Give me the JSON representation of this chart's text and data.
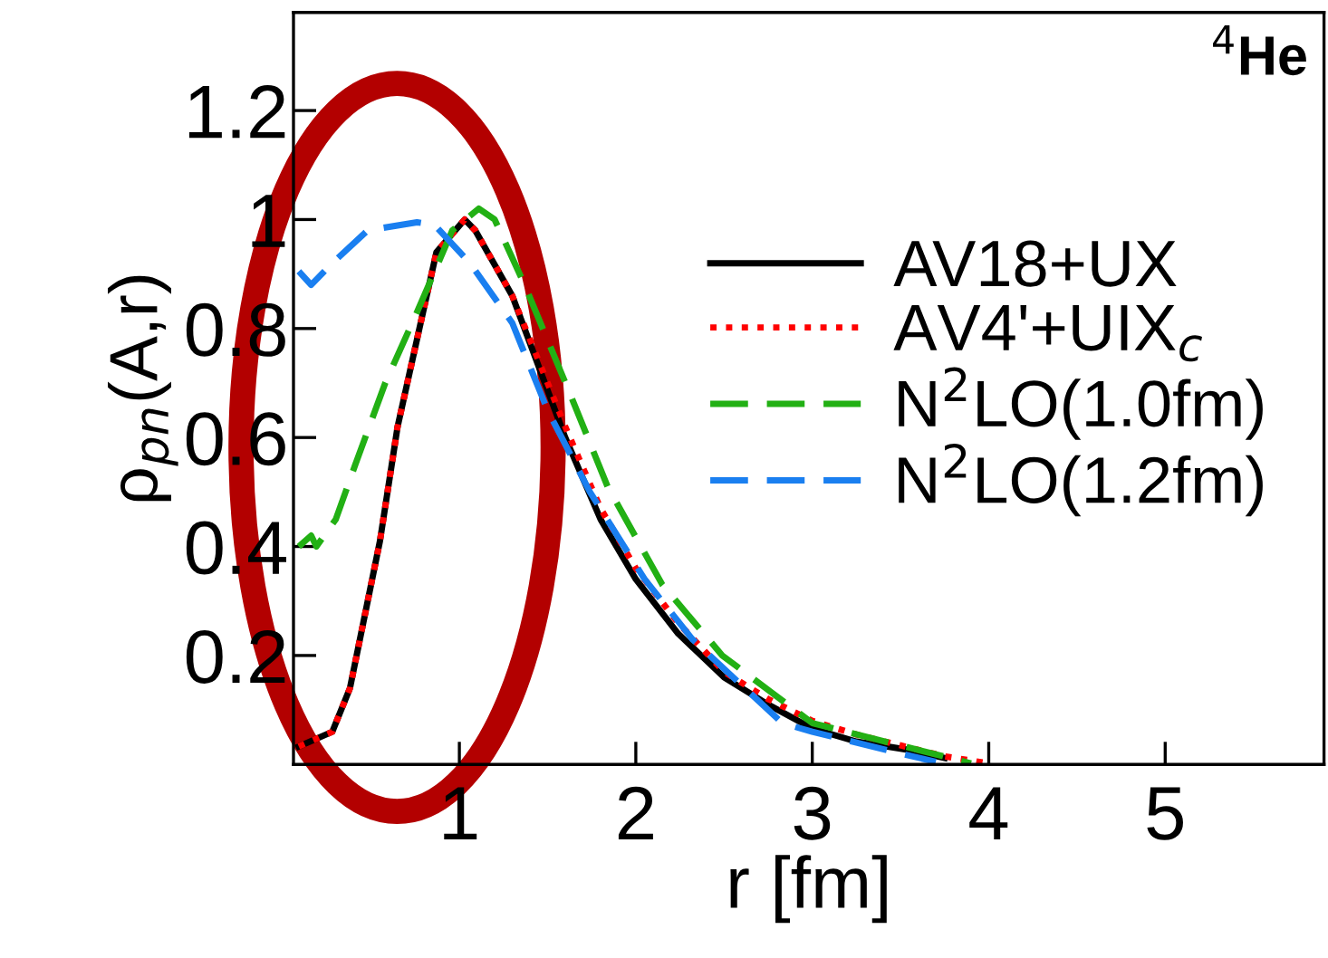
{
  "chart_data": {
    "type": "line",
    "xlabel": "r [fm]",
    "ylabel": "ρ$_{pn}$(A,r)",
    "annotations": [
      "$^{4}$He"
    ],
    "xlim": [
      0.06,
      5.9
    ],
    "ylim": [
      0,
      1.38
    ],
    "xticks": [
      1,
      2,
      3,
      4,
      5
    ],
    "yticks": [
      0.2,
      0.4,
      0.6,
      0.8,
      1,
      1.2
    ],
    "grid": false,
    "legend": "right",
    "marker": "none",
    "series": [
      {
        "name": "AV18+UX",
        "color": "#000000",
        "line_style": "solid",
        "x": [
          0.09,
          0.28,
          0.38,
          0.55,
          0.65,
          0.76,
          0.87,
          1.03,
          1.09,
          1.3,
          1.45,
          1.6,
          1.8,
          2.0,
          2.24,
          2.5,
          2.75,
          3.0,
          3.25,
          3.54,
          3.75
        ],
        "values": [
          0.033,
          0.06,
          0.14,
          0.41,
          0.62,
          0.78,
          0.94,
          1.0,
          0.98,
          0.86,
          0.73,
          0.6,
          0.45,
          0.34,
          0.24,
          0.16,
          0.11,
          0.066,
          0.042,
          0.027,
          0.012
        ]
      },
      {
        "name": "AV4'+UIX$_{c}$",
        "color": "#ff0000",
        "line_style": "dotted",
        "x": [
          0.09,
          0.28,
          0.38,
          0.55,
          0.65,
          0.76,
          0.87,
          1.03,
          1.09,
          1.3,
          1.45,
          1.6,
          1.8,
          2.0,
          2.24,
          2.5,
          2.75,
          3.0,
          3.25,
          3.5,
          3.75,
          4.0
        ],
        "values": [
          0.033,
          0.06,
          0.14,
          0.41,
          0.62,
          0.78,
          0.94,
          1.0,
          0.98,
          0.86,
          0.74,
          0.62,
          0.47,
          0.36,
          0.26,
          0.17,
          0.12,
          0.08,
          0.055,
          0.035,
          0.015,
          0.002
        ]
      },
      {
        "name": "N$^{2}$LO(1.0fm)",
        "color": "#22b014",
        "line_style": "dashed",
        "x": [
          0.09,
          0.16,
          0.19,
          0.3,
          0.41,
          0.58,
          0.76,
          0.96,
          1.11,
          1.2,
          1.37,
          1.64,
          1.84,
          2.15,
          2.49,
          3.0,
          3.5,
          3.9
        ],
        "values": [
          0.4,
          0.42,
          0.4,
          0.45,
          0.55,
          0.7,
          0.83,
          0.98,
          1.02,
          1.0,
          0.88,
          0.67,
          0.51,
          0.33,
          0.2,
          0.076,
          0.035,
          0.002
        ]
      },
      {
        "name": "N$^{2}$LO(1.2fm)",
        "color": "#1a7ff0",
        "line_style": "dashed",
        "x": [
          0.09,
          0.16,
          0.28,
          0.48,
          0.76,
          0.86,
          1.06,
          1.3,
          1.5,
          1.74,
          2.05,
          2.32,
          2.83,
          3.0,
          3.5,
          3.7
        ],
        "values": [
          0.905,
          0.88,
          0.92,
          0.98,
          0.995,
          0.99,
          0.92,
          0.81,
          0.65,
          0.5,
          0.34,
          0.23,
          0.076,
          0.06,
          0.02,
          0.005
        ]
      }
    ]
  }
}
